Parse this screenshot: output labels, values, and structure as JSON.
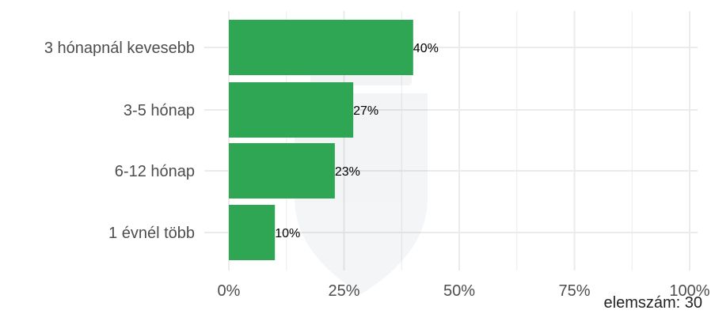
{
  "chart_data": {
    "type": "bar",
    "orientation": "horizontal",
    "categories": [
      "3 hónapnál kevesebb",
      "3-5 hónap",
      "6-12 hónap",
      "1 évnél több"
    ],
    "values": [
      40,
      27,
      23,
      10
    ],
    "data_labels": [
      "40%",
      "27%",
      "23%",
      "10%"
    ],
    "x_ticks": [
      "0%",
      "25%",
      "50%",
      "75%",
      "100%"
    ],
    "xlim": [
      0,
      100
    ],
    "grid": true,
    "bar_color": "#2ea653",
    "grid_color": "#ebebeb"
  },
  "footnote": "elemszám: 30",
  "watermark": "coat-of-arms-watermark"
}
